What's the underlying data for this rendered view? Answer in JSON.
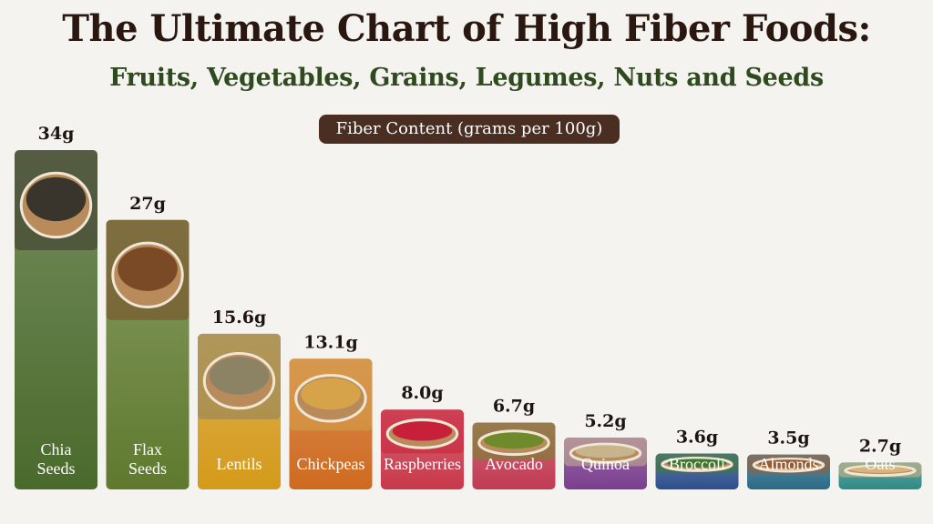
{
  "title": "The Ultimate Chart of High Fiber Foods:",
  "subtitle": "Fruits, Vegetables, Grains, Legumes, Nuts and Seeds",
  "chart_data": {
    "type": "bar",
    "title": "The Ultimate Chart of High Fiber Foods:",
    "subtitle": "Fruits, Vegetables, Grains, Legumes, Nuts and Seeds",
    "ylabel": "Fiber Content (grams per 100g)",
    "ylim": [
      0,
      34
    ],
    "grid": false,
    "categories": [
      "Chia Seeds",
      "Flax Seeds",
      "Lentils",
      "Chickpeas",
      "Raspberries",
      "Avocado",
      "Quinoa",
      "Broccoli",
      "Almonds",
      "Oats"
    ],
    "values": [
      34,
      27,
      15.6,
      13.1,
      8.0,
      6.7,
      5.2,
      3.6,
      3.5,
      2.7
    ],
    "value_labels": [
      "34g",
      "27g",
      "15.6g",
      "13.1g",
      "8.0g",
      "6.7g",
      "5.2g",
      "3.6g",
      "3.5g",
      "2.7g"
    ],
    "label_lines": [
      [
        "Chia",
        "Seeds"
      ],
      [
        "Flax",
        "Seeds"
      ],
      [
        "Lentils"
      ],
      [
        "Chickpeas"
      ],
      [
        "Raspberries"
      ],
      [
        "Avocado"
      ],
      [
        "Quinoa"
      ],
      [
        "Broccoli"
      ],
      [
        "Almonds"
      ],
      [
        "Oats"
      ]
    ],
    "colors": [
      "#4a6a2c",
      "#5f7a2e",
      "#d49a1a",
      "#cf6a1f",
      "#c8384a",
      "#c03a52",
      "#7a3e8e",
      "#2d4f8c",
      "#2a6b86",
      "#2f8a86"
    ],
    "image_colors": [
      "#3a352c",
      "#7a4a26",
      "#8c8264",
      "#d6a24a",
      "#c8203a",
      "#6e8a2a",
      "#c8b48c",
      "#3c7a2a",
      "#9a5a30",
      "#d6b47c"
    ]
  }
}
